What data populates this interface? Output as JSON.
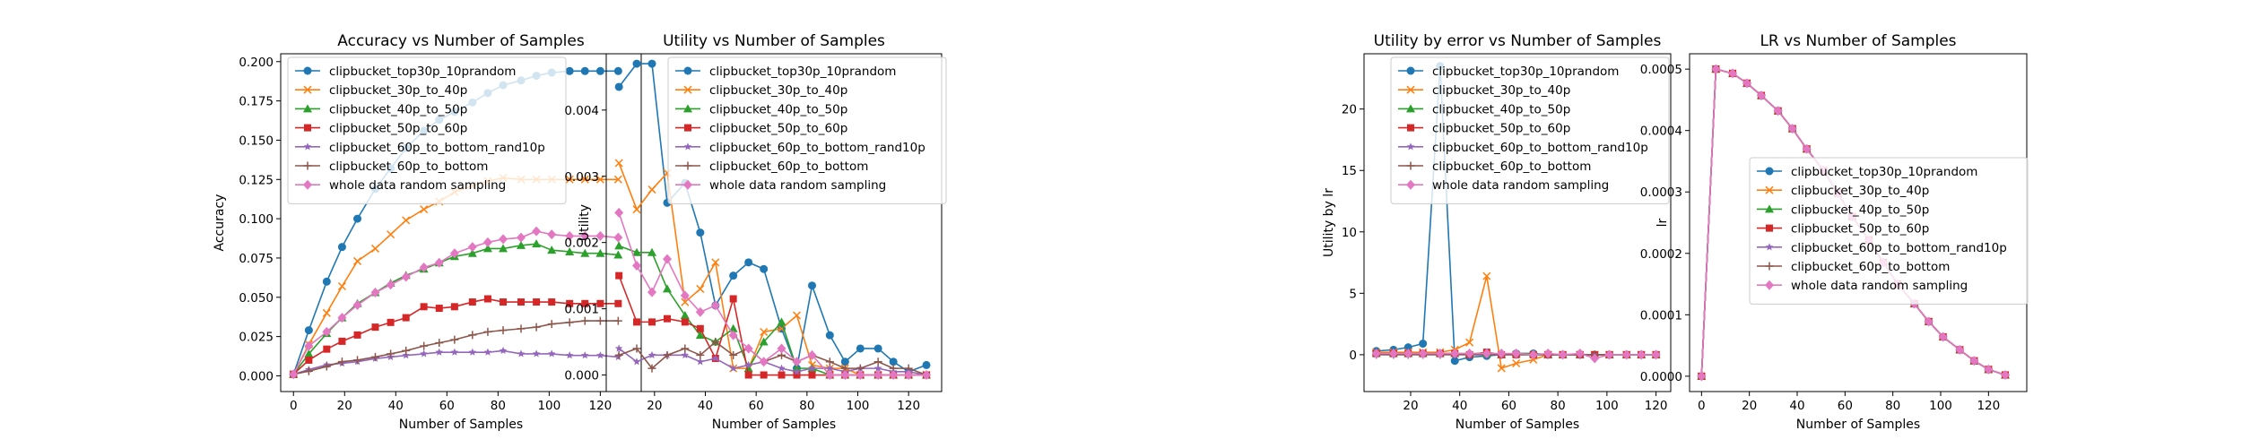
{
  "figure": {
    "series_names": [
      "clipbucket_top30p_10prandom",
      "clipbucket_30p_to_40p",
      "clipbucket_40p_to_50p",
      "clipbucket_50p_to_60p",
      "clipbucket_60p_to_bottom_rand10p",
      "clipbucket_60p_to_bottom",
      "whole data random sampling"
    ],
    "series_colors": [
      "#1f77b4",
      "#ff7f0e",
      "#2ca02c",
      "#d62728",
      "#9467bd",
      "#8c564b",
      "#e377c2"
    ],
    "series_markers": [
      "circle",
      "x",
      "triangle",
      "square",
      "star",
      "plus",
      "diamond"
    ]
  },
  "chart_data": [
    {
      "type": "line",
      "title": "Accuracy vs Number of Samples",
      "xlabel": "Number of Samples",
      "ylabel": "Accuracy",
      "xlim": [
        -5,
        136
      ],
      "ylim": [
        -0.01,
        0.205
      ],
      "xticks": [
        0,
        20,
        40,
        60,
        80,
        100,
        120
      ],
      "xtick_labels": [
        "0",
        "20",
        "40",
        "60",
        "80",
        "100",
        "120"
      ],
      "yticks": [
        0,
        0.025,
        0.05,
        0.075,
        0.1,
        0.125,
        0.15,
        0.175,
        0.2
      ],
      "ytick_labels": [
        "0.000",
        "0.025",
        "0.050",
        "0.075",
        "0.100",
        "0.125",
        "0.150",
        "0.175",
        "0.200"
      ],
      "legend_position": "upper-left",
      "x": [
        0,
        6,
        13,
        19,
        25,
        32,
        38,
        44,
        51,
        57,
        63,
        70,
        76,
        82,
        89,
        95,
        101,
        108,
        114,
        120,
        127
      ],
      "series": [
        {
          "name": "clipbucket_top30p_10prandom",
          "values": [
            0.001,
            0.029,
            0.06,
            0.082,
            0.1,
            0.119,
            0.132,
            0.145,
            0.156,
            0.163,
            0.168,
            0.174,
            0.18,
            0.185,
            0.188,
            0.191,
            0.193,
            0.194,
            0.194,
            0.194,
            0.194
          ]
        },
        {
          "name": "clipbucket_30p_to_40p",
          "values": [
            0.001,
            0.02,
            0.04,
            0.057,
            0.073,
            0.081,
            0.09,
            0.099,
            0.106,
            0.111,
            0.117,
            0.121,
            0.124,
            0.126,
            0.125,
            0.125,
            0.125,
            0.125,
            0.125,
            0.125,
            0.125
          ]
        },
        {
          "name": "clipbucket_40p_to_50p",
          "values": [
            0.001,
            0.014,
            0.027,
            0.037,
            0.046,
            0.053,
            0.059,
            0.064,
            0.068,
            0.072,
            0.076,
            0.078,
            0.081,
            0.081,
            0.083,
            0.084,
            0.08,
            0.079,
            0.078,
            0.078,
            0.077
          ]
        },
        {
          "name": "clipbucket_50p_to_60p",
          "values": [
            0.001,
            0.01,
            0.017,
            0.022,
            0.026,
            0.031,
            0.034,
            0.037,
            0.044,
            0.043,
            0.044,
            0.047,
            0.049,
            0.047,
            0.047,
            0.047,
            0.047,
            0.046,
            0.046,
            0.046,
            0.046
          ]
        },
        {
          "name": "clipbucket_60p_to_bottom_rand10p",
          "values": [
            0.001,
            0.004,
            0.007,
            0.008,
            0.009,
            0.011,
            0.012,
            0.013,
            0.014,
            0.015,
            0.015,
            0.015,
            0.015,
            0.016,
            0.014,
            0.014,
            0.014,
            0.013,
            0.013,
            0.013,
            0.012
          ]
        },
        {
          "name": "clipbucket_60p_to_bottom",
          "values": [
            0.001,
            0.003,
            0.006,
            0.009,
            0.01,
            0.012,
            0.014,
            0.016,
            0.019,
            0.021,
            0.023,
            0.026,
            0.028,
            0.029,
            0.03,
            0.031,
            0.033,
            0.034,
            0.035,
            0.035,
            0.035
          ]
        },
        {
          "name": "whole data random sampling",
          "values": [
            0.001,
            0.019,
            0.028,
            0.037,
            0.045,
            0.053,
            0.058,
            0.063,
            0.069,
            0.072,
            0.078,
            0.082,
            0.085,
            0.087,
            0.088,
            0.092,
            0.09,
            0.089,
            0.089,
            0.089,
            0.088
          ]
        }
      ]
    },
    {
      "type": "line",
      "title": "Utility vs Number of Samples",
      "xlabel": "Number of Samples",
      "ylabel": "Utility",
      "xlim": [
        1,
        133
      ],
      "ylim": [
        -0.00025,
        0.00485
      ],
      "xticks": [
        20,
        40,
        60,
        80,
        100,
        120
      ],
      "xtick_labels": [
        "20",
        "40",
        "60",
        "80",
        "100",
        "120"
      ],
      "yticks": [
        0,
        0.001,
        0.002,
        0.003,
        0.004
      ],
      "ytick_labels": [
        "0.000",
        "0.001",
        "0.002",
        "0.003",
        "0.004"
      ],
      "legend_position": "upper-left",
      "x": [
        6,
        13,
        19,
        25,
        32,
        38,
        44,
        51,
        57,
        63,
        70,
        76,
        82,
        89,
        95,
        101,
        108,
        114,
        120,
        127
      ],
      "series": [
        {
          "name": "clipbucket_top30p_10prandom",
          "values": [
            0.00435,
            0.0047,
            0.0047,
            0.0026,
            0.0029,
            0.00215,
            0.00105,
            0.0015,
            0.0017,
            0.0016,
            0.0007,
            0.0001,
            0.00135,
            0.0006,
            0.0002,
            0.0004,
            0.0004,
            0.0002,
            5e-05,
            0.00015
          ]
        },
        {
          "name": "clipbucket_30p_to_40p",
          "values": [
            0.0032,
            0.0025,
            0.0028,
            0.00305,
            0.0011,
            0.0013,
            0.0017,
            0.0001,
            0.0001,
            0.00065,
            0.0007,
            0.0009,
            0.00015,
            0.0001,
            0.0001,
            0.0,
            0.0,
            0.0,
            0.0,
            0.0
          ]
        },
        {
          "name": "clipbucket_40p_to_50p",
          "values": [
            0.00195,
            0.00185,
            0.00185,
            0.0013,
            0.0009,
            0.0006,
            0.0005,
            0.0007,
            0.0001,
            0.0005,
            0.0008,
            0.0001,
            0.0001,
            0.0,
            0.0,
            0.0,
            0.0,
            0.0,
            0.0,
            0.0
          ]
        },
        {
          "name": "clipbucket_50p_to_60p",
          "values": [
            0.0015,
            0.0008,
            0.0008,
            0.00085,
            0.0008,
            0.0007,
            0.00025,
            0.00115,
            0.0,
            0.0,
            0.0,
            0.0,
            0.0,
            0.0,
            0.0,
            0.0,
            0.0,
            0.0,
            0.0,
            0.0
          ]
        },
        {
          "name": "clipbucket_60p_to_bottom_rand10p",
          "values": [
            0.0004,
            0.0002,
            0.0003,
            0.0003,
            0.0003,
            0.0002,
            0.00025,
            0.0001,
            0.00015,
            0.0002,
            0.0001,
            5e-05,
            0.0001,
            0.0001,
            5e-05,
            0.0001,
            0.0001,
            5e-05,
            5e-05,
            0.0
          ]
        },
        {
          "name": "clipbucket_60p_to_bottom",
          "values": [
            0.0003,
            0.0004,
            0.0001,
            0.0003,
            0.0004,
            0.0003,
            0.0005,
            0.0003,
            0.0004,
            0.0002,
            0.0003,
            0.0002,
            0.0003,
            0.0002,
            0.0001,
            0.0001,
            0.0002,
            0.0001,
            0.0001,
            0.0
          ]
        },
        {
          "name": "whole data random sampling",
          "values": [
            0.00245,
            0.00165,
            0.00125,
            0.00175,
            0.0012,
            0.00095,
            0.00105,
            0.0006,
            0.0004,
            0.0002,
            0.0004,
            0.0002,
            0.0003,
            0.0,
            0.0,
            0.0,
            0.0,
            0.0,
            0.0,
            0.0
          ]
        }
      ]
    },
    {
      "type": "line",
      "title": "Utility by error vs Number of Samples",
      "xlabel": "Number of Samples",
      "ylabel": "Utility by lr",
      "xlim": [
        1,
        126
      ],
      "ylim": [
        -3,
        24.5
      ],
      "xticks": [
        20,
        40,
        60,
        80,
        100,
        120
      ],
      "xtick_labels": [
        "20",
        "40",
        "60",
        "80",
        "100",
        "120"
      ],
      "yticks": [
        0,
        5,
        10,
        15,
        20
      ],
      "ytick_labels": [
        "0",
        "5",
        "10",
        "15",
        "20"
      ],
      "legend_position": "upper-left",
      "x": [
        6,
        13,
        19,
        25,
        32,
        38,
        44,
        51,
        57,
        63,
        70,
        76,
        82,
        89,
        95,
        101,
        108,
        114,
        120
      ],
      "series": [
        {
          "name": "clipbucket_top30p_10prandom",
          "values": [
            0.3,
            0.4,
            0.6,
            0.9,
            23.5,
            -0.5,
            -0.2,
            -0.1,
            0.0,
            0.1,
            0.1,
            0.0,
            0.0,
            0.0,
            0.0,
            0.0,
            0.0,
            0.0,
            0.0
          ]
        },
        {
          "name": "clipbucket_30p_to_40p",
          "values": [
            0.2,
            0.2,
            0.2,
            0.2,
            0.2,
            0.4,
            1.0,
            6.4,
            -1.1,
            -0.7,
            -0.4,
            0.0,
            0.0,
            0.0,
            0.0,
            0.0,
            0.0,
            0.0,
            0.0
          ]
        },
        {
          "name": "clipbucket_40p_to_50p",
          "values": [
            0.1,
            0.1,
            0.1,
            0.1,
            0.1,
            0.1,
            0.1,
            0.1,
            0.0,
            0.1,
            0.1,
            0.0,
            0.0,
            0.0,
            0.0,
            0.0,
            0.0,
            0.0,
            0.0
          ]
        },
        {
          "name": "clipbucket_50p_to_60p",
          "values": [
            0.1,
            0.1,
            0.1,
            0.1,
            0.1,
            0.1,
            0.0,
            0.2,
            0.0,
            0.0,
            0.0,
            0.0,
            0.0,
            0.0,
            0.0,
            0.0,
            0.0,
            0.0,
            0.0
          ]
        },
        {
          "name": "clipbucket_60p_to_bottom_rand10p",
          "values": [
            0.0,
            0.0,
            0.0,
            0.0,
            0.0,
            0.0,
            0.0,
            0.0,
            0.0,
            0.0,
            0.0,
            0.0,
            0.0,
            0.0,
            0.0,
            0.0,
            0.0,
            0.0,
            0.0
          ]
        },
        {
          "name": "clipbucket_60p_to_bottom",
          "values": [
            0.0,
            0.0,
            0.0,
            0.0,
            0.0,
            0.0,
            0.0,
            0.0,
            0.0,
            0.0,
            0.0,
            0.0,
            0.0,
            0.0,
            0.0,
            0.0,
            0.0,
            0.0,
            0.0
          ]
        },
        {
          "name": "whole data random sampling",
          "values": [
            0.1,
            0.1,
            0.1,
            0.1,
            0.1,
            0.1,
            0.1,
            0.1,
            0.1,
            0.1,
            0.0,
            0.1,
            0.0,
            0.1,
            -0.3,
            0.0,
            0.0,
            0.0,
            0.0
          ]
        }
      ]
    },
    {
      "type": "line",
      "title": "LR vs Number of Samples",
      "xlabel": "Number of Samples",
      "ylabel": "lr",
      "xlim": [
        -5,
        136
      ],
      "ylim": [
        -2.5e-05,
        0.000525
      ],
      "xticks": [
        0,
        20,
        40,
        60,
        80,
        100,
        120
      ],
      "xtick_labels": [
        "0",
        "20",
        "40",
        "60",
        "80",
        "100",
        "120"
      ],
      "yticks": [
        0,
        0.0001,
        0.0002,
        0.0003,
        0.0004,
        0.0005
      ],
      "ytick_labels": [
        "0.0000",
        "0.0001",
        "0.0002",
        "0.0003",
        "0.0004",
        "0.0005"
      ],
      "legend_position": "center-right",
      "x": [
        0,
        6,
        13,
        19,
        25,
        32,
        38,
        44,
        51,
        57,
        63,
        70,
        76,
        82,
        89,
        95,
        101,
        108,
        114,
        120,
        127
      ],
      "shared_values": [
        0.0,
        0.0005,
        0.000493,
        0.000477,
        0.000457,
        0.000432,
        0.000403,
        0.00037,
        0.000335,
        0.000298,
        0.00026,
        0.000222,
        0.000185,
        0.00015,
        0.000118,
        8.9e-05,
        6.4e-05,
        4.3e-05,
        2.5e-05,
        1.1e-05,
        2e-06
      ],
      "series_names_ref": "figure.series_names"
    }
  ]
}
